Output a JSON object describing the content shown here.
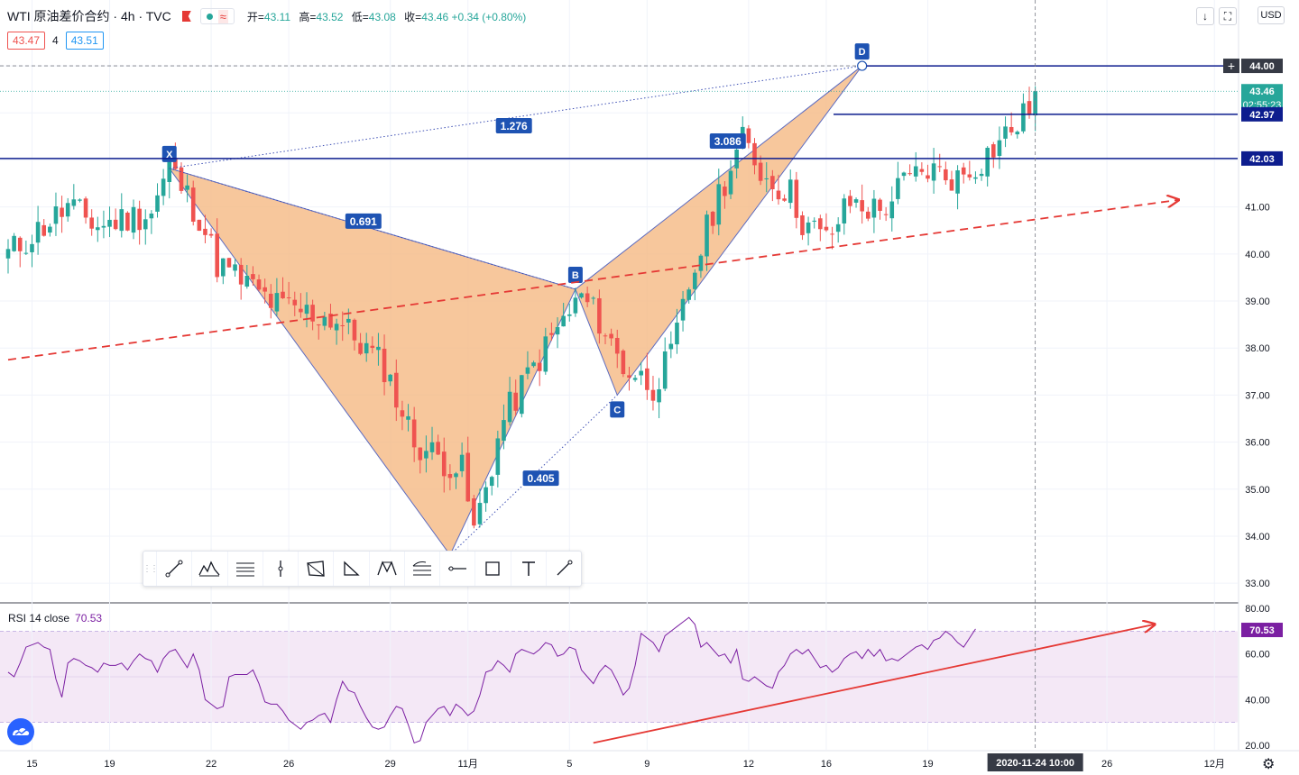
{
  "header": {
    "symbol": "WTI 原油差价合约 · 4h · TVC",
    "ohlc": [
      {
        "label": "开=",
        "value": "43.11"
      },
      {
        "label": "高=",
        "value": "43.52"
      },
      {
        "label": "低=",
        "value": "43.08"
      },
      {
        "label": "收=",
        "value": "43.46 +0.34 (+0.80%)"
      }
    ],
    "bid": "43.47",
    "spread": "4",
    "ask": "43.51",
    "currency": "USD"
  },
  "rsi": {
    "label": "RSI 14 close",
    "value": "70.53",
    "axis_ticks": [
      "80.00",
      "60.00",
      "40.00",
      "20.00"
    ],
    "upper_band": 70,
    "lower_band": 30
  },
  "toolbar": {
    "tools": [
      "trend-line-icon",
      "pattern-icon",
      "fib-icon",
      "vertical-line-icon",
      "rectangle-pattern-icon",
      "triangle-icon",
      "xabcd-icon",
      "fib-fan-icon",
      "horizontal-ray-icon",
      "rectangle-icon",
      "text-icon",
      "line-icon"
    ]
  },
  "price_labels": {
    "last": "43.46",
    "countdown": "02:55:23",
    "crosshair_price": "44.00",
    "level_1": "42.97",
    "level_2": "42.03"
  },
  "crosshair_date": "2020-11-24   10:00",
  "colors": {
    "up": "#26a69a",
    "down": "#ef5350",
    "pattern_fill": "#f5b983",
    "level_line": "#0d1d8e",
    "rsi": "#7b1fa2",
    "trend": "#e53935"
  },
  "chart_data": [
    {
      "type": "candlestick",
      "title": "WTI 原油差价合约 · 4h · TVC",
      "x_ticks": [
        "15",
        "19",
        "22",
        "26",
        "29",
        "11月",
        "5",
        "9",
        "12",
        "16",
        "19",
        "26",
        "12月"
      ],
      "y_ticks": [
        "44.00",
        "41.00",
        "40.00",
        "39.00",
        "38.00",
        "37.00",
        "36.00",
        "35.00",
        "34.00",
        "33.00"
      ],
      "ylim": [
        32.6,
        45.4
      ],
      "candle_count": 173,
      "seed": 11,
      "anchors": [
        [
          0,
          40.0
        ],
        [
          10,
          41.0
        ],
        [
          15,
          40.6
        ],
        [
          24,
          40.9
        ],
        [
          27,
          41.85
        ],
        [
          32,
          40.8
        ],
        [
          35,
          39.8
        ],
        [
          45,
          38.9
        ],
        [
          55,
          38.6
        ],
        [
          63,
          37.6
        ],
        [
          68,
          36.0
        ],
        [
          73,
          35.6
        ],
        [
          76,
          35.4
        ],
        [
          78,
          34.1
        ],
        [
          83,
          36.5
        ],
        [
          87,
          37.4
        ],
        [
          92,
          38.4
        ],
        [
          96,
          39.1
        ],
        [
          99,
          38.6
        ],
        [
          103,
          37.6
        ],
        [
          108,
          37.2
        ],
        [
          111,
          37.8
        ],
        [
          114,
          39.3
        ],
        [
          119,
          41.3
        ],
        [
          123,
          42.4
        ],
        [
          127,
          41.6
        ],
        [
          131,
          41.3
        ],
        [
          133,
          40.7
        ],
        [
          137,
          40.3
        ],
        [
          141,
          41.1
        ],
        [
          146,
          40.9
        ],
        [
          150,
          41.5
        ],
        [
          154,
          41.8
        ],
        [
          159,
          41.6
        ],
        [
          163,
          42.0
        ],
        [
          166,
          42.4
        ],
        [
          170,
          42.9
        ],
        [
          172,
          43.46
        ]
      ],
      "harmonic_pattern": {
        "points": [
          {
            "label": "X",
            "x_idx": 27,
            "y": 41.82
          },
          {
            "label": "A",
            "x_idx": 74,
            "y": 33.6
          },
          {
            "label": "B",
            "x_idx": 95,
            "y": 39.25
          },
          {
            "label": "C",
            "x_idx": 102,
            "y": 37.0
          },
          {
            "label": "D",
            "x_idx": 143,
            "y": 44.0
          }
        ],
        "ratios": [
          "0.691",
          "0.405",
          "3.086",
          "1.276"
        ]
      },
      "horizontal_levels": [
        44.0,
        42.97,
        42.03
      ],
      "trendline": [
        [
          0,
          37.75
        ],
        [
          196,
          41.15
        ]
      ]
    },
    {
      "type": "line",
      "title": "RSI 14 close",
      "y_ticks": [
        "80.00",
        "60.00",
        "40.00",
        "20.00"
      ],
      "ylim": [
        18,
        82
      ],
      "values": [
        52,
        50,
        56,
        63,
        64,
        65,
        63,
        62,
        49,
        41,
        56,
        58,
        57,
        55,
        54,
        52,
        56,
        55,
        55,
        56,
        53,
        57,
        60,
        58,
        57,
        52,
        58,
        61,
        62,
        58,
        54,
        60,
        53,
        40,
        38,
        36,
        37,
        50,
        51,
        51,
        51,
        53,
        47,
        39,
        38,
        38,
        35,
        31,
        29,
        27,
        30,
        31,
        33,
        34,
        30,
        40,
        48,
        44,
        43,
        37,
        32,
        28,
        27,
        28,
        33,
        37,
        36,
        29,
        21,
        22,
        30,
        33,
        36,
        37,
        33,
        38,
        36,
        33,
        35,
        42,
        52,
        53,
        57,
        55,
        52,
        60,
        62,
        61,
        60,
        62,
        65,
        64,
        59,
        60,
        63,
        62,
        53,
        50,
        47,
        52,
        55,
        53,
        48,
        42,
        45,
        55,
        69,
        67,
        65,
        61,
        68,
        70,
        72,
        74,
        76,
        73,
        63,
        65,
        62,
        59,
        60,
        56,
        62,
        49,
        48,
        50,
        48,
        46,
        45,
        52,
        55,
        60,
        62,
        60,
        62,
        58,
        54,
        55,
        52,
        54,
        58,
        60,
        61,
        58,
        62,
        59,
        62,
        57,
        58,
        57,
        59,
        61,
        63,
        64,
        62,
        66,
        67,
        70,
        68,
        65,
        63,
        67,
        71
      ],
      "trendline": [
        [
          98,
          21
        ],
        [
          192,
          73
        ]
      ]
    }
  ]
}
